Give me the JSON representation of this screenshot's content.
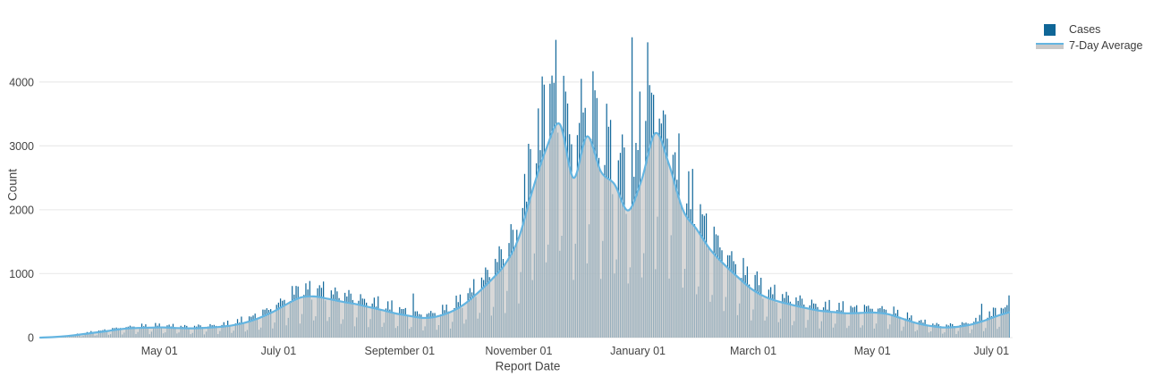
{
  "figure": {
    "background": "#ffffff",
    "grid_color": "#ececec",
    "text_color": "#444444"
  },
  "legend": {
    "items": [
      {
        "label": "Cases",
        "swatch": "square",
        "color": "#0f6697"
      },
      {
        "label": "7-Day Average",
        "swatch": "line-over-area",
        "line_color": "#64b5e1",
        "fill_color": "#c9c9c9"
      }
    ]
  },
  "chart_data": {
    "type": "bar",
    "title": "",
    "xlabel": "Report Date",
    "ylabel": "Count",
    "legend_position": "top-right",
    "grid": "horizontal",
    "y_ticks": [
      0,
      1000,
      2000,
      3000,
      4000
    ],
    "ylim": [
      0,
      4870
    ],
    "num_days": 497,
    "x_tick_labels": [
      "May 01",
      "July 01",
      "September 01",
      "November 01",
      "January 01",
      "March 01",
      "May 01",
      "July 01"
    ],
    "x_tick_day_index": [
      61,
      122,
      184,
      245,
      306,
      365,
      426,
      487
    ],
    "series": [
      {
        "name": "Cases",
        "type": "bar",
        "color": "#156a9c"
      },
      {
        "name": "7-Day Average",
        "type": "line+area",
        "line_color": "#64b5e1",
        "fill_color": "#c9c9c9",
        "fill_opacity": 0.72
      }
    ],
    "avg_weekly": [
      [
        0,
        0
      ],
      [
        7,
        8
      ],
      [
        14,
        25
      ],
      [
        21,
        50
      ],
      [
        28,
        78
      ],
      [
        35,
        105
      ],
      [
        42,
        135
      ],
      [
        49,
        150
      ],
      [
        56,
        155
      ],
      [
        63,
        160
      ],
      [
        70,
        150
      ],
      [
        77,
        145
      ],
      [
        84,
        152
      ],
      [
        91,
        165
      ],
      [
        98,
        190
      ],
      [
        105,
        235
      ],
      [
        112,
        305
      ],
      [
        119,
        400
      ],
      [
        126,
        520
      ],
      [
        133,
        625
      ],
      [
        140,
        645
      ],
      [
        147,
        610
      ],
      [
        154,
        565
      ],
      [
        161,
        528
      ],
      [
        168,
        480
      ],
      [
        175,
        430
      ],
      [
        182,
        378
      ],
      [
        189,
        340
      ],
      [
        196,
        308
      ],
      [
        203,
        330
      ],
      [
        210,
        400
      ],
      [
        217,
        520
      ],
      [
        224,
        700
      ],
      [
        231,
        905
      ],
      [
        238,
        1150
      ],
      [
        245,
        1560
      ],
      [
        252,
        2300
      ],
      [
        259,
        2950
      ],
      [
        266,
        3340
      ],
      [
        273,
        2500
      ],
      [
        280,
        3150
      ],
      [
        287,
        2600
      ],
      [
        294,
        2400
      ],
      [
        301,
        1990
      ],
      [
        308,
        2480
      ],
      [
        315,
        3200
      ],
      [
        322,
        2700
      ],
      [
        329,
        2000
      ],
      [
        336,
        1700
      ],
      [
        343,
        1380
      ],
      [
        350,
        1150
      ],
      [
        357,
        950
      ],
      [
        364,
        765
      ],
      [
        371,
        640
      ],
      [
        378,
        565
      ],
      [
        385,
        512
      ],
      [
        392,
        462
      ],
      [
        399,
        420
      ],
      [
        406,
        400
      ],
      [
        413,
        380
      ],
      [
        420,
        386
      ],
      [
        427,
        392
      ],
      [
        434,
        368
      ],
      [
        441,
        300
      ],
      [
        448,
        232
      ],
      [
        455,
        186
      ],
      [
        462,
        160
      ],
      [
        469,
        166
      ],
      [
        476,
        200
      ],
      [
        483,
        262
      ],
      [
        490,
        340
      ],
      [
        496,
        395
      ]
    ],
    "bar_weekday_pattern": [
      0.38,
      0.55,
      1.18,
      1.3,
      1.22,
      1.32,
      1.05
    ],
    "bar_jitter": [
      1.0,
      0.93,
      1.07,
      0.9,
      1.12,
      0.97,
      1.05,
      0.88,
      1.1,
      0.95,
      1.03
    ],
    "bar_spikes": [
      [
        132,
        800
      ],
      [
        136,
        850
      ],
      [
        144,
        780
      ],
      [
        191,
        690
      ],
      [
        240,
        1480
      ],
      [
        243,
        1420
      ],
      [
        251,
        2950
      ],
      [
        258,
        3960
      ],
      [
        262,
        4100
      ],
      [
        264,
        4660
      ],
      [
        269,
        3850
      ],
      [
        277,
        4050
      ],
      [
        284,
        3870
      ],
      [
        291,
        3300
      ],
      [
        298,
        3180
      ],
      [
        303,
        4700
      ],
      [
        307,
        3850
      ],
      [
        311,
        4620
      ],
      [
        314,
        3800
      ],
      [
        318,
        3350
      ],
      [
        325,
        2900
      ],
      [
        366,
        980
      ],
      [
        482,
        530
      ],
      [
        489,
        465
      ],
      [
        496,
        660
      ]
    ],
    "bar_clamp": 4760
  }
}
